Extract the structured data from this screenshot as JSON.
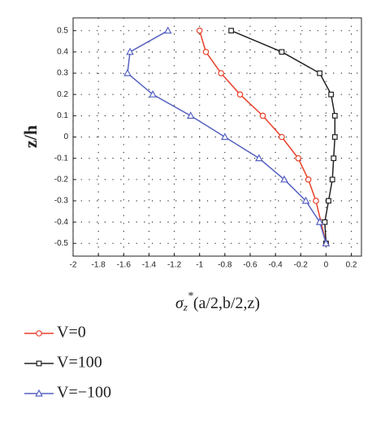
{
  "chart_data": {
    "type": "line",
    "xlabel": {
      "symbol": "σ",
      "subscript": "z",
      "superscript": "*",
      "argument": "(a/2,b/2,z)"
    },
    "ylabel": "z/h",
    "xlim": [
      -2,
      0.28
    ],
    "xticks": [
      -2,
      -1.8,
      -1.6,
      -1.4,
      -1.2,
      -1,
      -0.8,
      -0.6,
      -0.4,
      -0.2,
      0,
      0.2
    ],
    "ylim": [
      -0.56,
      0.56
    ],
    "yticks": [
      0.5,
      0.4,
      0.3,
      0.2,
      0.1,
      0,
      -0.1,
      -0.2,
      -0.3,
      -0.4,
      -0.5
    ],
    "grid": true,
    "legend": "below",
    "series": [
      {
        "name": "V=0",
        "color": "#e8402a",
        "marker": "circle",
        "x": [
          -1.0,
          -0.95,
          -0.83,
          -0.68,
          -0.5,
          -0.35,
          -0.22,
          -0.14,
          -0.08,
          -0.04,
          0
        ],
        "values": [
          0.5,
          0.4,
          0.3,
          0.2,
          0.1,
          0,
          -0.1,
          -0.2,
          -0.3,
          -0.4,
          -0.5
        ]
      },
      {
        "name": "V=100",
        "color": "#222222",
        "marker": "square",
        "x": [
          -0.75,
          -0.35,
          -0.05,
          0.04,
          0.07,
          0.07,
          0.06,
          0.05,
          0.02,
          -0.01,
          0
        ],
        "values": [
          0.5,
          0.4,
          0.3,
          0.2,
          0.1,
          0,
          -0.1,
          -0.2,
          -0.3,
          -0.4,
          -0.5
        ]
      },
      {
        "name": "V=−100",
        "color": "#5561c0",
        "marker": "triangle",
        "x": [
          -1.25,
          -1.55,
          -1.57,
          -1.37,
          -1.07,
          -0.8,
          -0.53,
          -0.33,
          -0.16,
          -0.05,
          0
        ],
        "values": [
          0.5,
          0.4,
          0.3,
          0.2,
          0.1,
          0,
          -0.1,
          -0.2,
          -0.3,
          -0.4,
          -0.5
        ]
      }
    ]
  }
}
